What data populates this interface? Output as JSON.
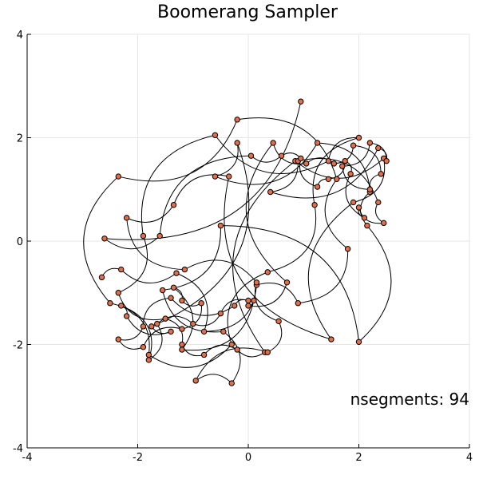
{
  "chart_data": {
    "type": "line",
    "title": "Boomerang Sampler",
    "annotation": "nsegments: 94",
    "xlim": [
      -4,
      4
    ],
    "ylim": [
      -4,
      4
    ],
    "xticks": [
      -4,
      -2,
      0,
      2,
      4
    ],
    "yticks": [
      -4,
      -2,
      0,
      2,
      4
    ],
    "grid": true,
    "colors": {
      "line": "#000000",
      "marker": "#e26f46"
    },
    "points": [
      [
        -2.65,
        -0.7
      ],
      [
        -2.3,
        -0.55
      ],
      [
        -1.3,
        -0.62
      ],
      [
        -0.8,
        -1.75
      ],
      [
        0.15,
        -0.85
      ],
      [
        0.9,
        -1.2
      ],
      [
        1.8,
        -0.15
      ],
      [
        1.6,
        1.2
      ],
      [
        -0.2,
        2.35
      ],
      [
        -2.35,
        1.25
      ],
      [
        -2.5,
        -1.2
      ],
      [
        -1.8,
        -2.2
      ],
      [
        -0.3,
        -2.0
      ],
      [
        0.35,
        -0.6
      ],
      [
        1.2,
        0.7
      ],
      [
        2.0,
        2.0
      ],
      [
        1.45,
        1.55
      ],
      [
        -0.6,
        2.05
      ],
      [
        -1.9,
        0.1
      ],
      [
        -2.35,
        -1.0
      ],
      [
        -1.5,
        -1.5
      ],
      [
        -1.2,
        -2.0
      ],
      [
        -0.8,
        -2.2
      ],
      [
        -0.2,
        -2.1
      ],
      [
        0.3,
        -2.15
      ],
      [
        0.85,
        1.55
      ],
      [
        2.45,
        1.6
      ],
      [
        1.9,
        0.75
      ],
      [
        1.5,
        -1.9
      ],
      [
        -0.35,
        1.25
      ],
      [
        -1.35,
        0.7
      ],
      [
        -2.2,
        0.45
      ],
      [
        -1.15,
        -0.55
      ],
      [
        0.15,
        -0.8
      ],
      [
        0.55,
        -1.55
      ],
      [
        0.35,
        -2.15
      ],
      [
        -0.95,
        -2.7
      ],
      [
        -0.3,
        -2.75
      ],
      [
        -0.45,
        -1.75
      ],
      [
        -1.55,
        -0.95
      ],
      [
        -0.5,
        0.3
      ],
      [
        2.0,
        -1.95
      ],
      [
        2.15,
        0.3
      ],
      [
        2.2,
        0.95
      ],
      [
        1.25,
        1.9
      ],
      [
        -0.6,
        1.25
      ],
      [
        -0.2,
        1.9
      ],
      [
        -1.75,
        -1.65
      ],
      [
        -1.4,
        -1.75
      ],
      [
        -2.2,
        -1.45
      ],
      [
        -2.3,
        -1.25
      ],
      [
        -1.8,
        -2.3
      ],
      [
        -1.65,
        -1.6
      ],
      [
        -1.0,
        -1.6
      ],
      [
        -0.5,
        -1.4
      ],
      [
        0.0,
        -1.15
      ],
      [
        -0.25,
        -1.25
      ],
      [
        -1.4,
        -1.1
      ],
      [
        -1.9,
        -1.65
      ],
      [
        -2.35,
        -1.9
      ],
      [
        -1.9,
        -2.05
      ],
      [
        -1.2,
        -1.7
      ],
      [
        -0.85,
        -1.2
      ],
      [
        -1.2,
        -1.15
      ],
      [
        -1.35,
        -0.9
      ],
      [
        -1.2,
        -2.1
      ],
      [
        0.1,
        -1.15
      ],
      [
        0.0,
        -1.25
      ],
      [
        0.7,
        -0.8
      ],
      [
        0.45,
        1.9
      ],
      [
        1.05,
        1.5
      ],
      [
        1.55,
        1.5
      ],
      [
        1.9,
        1.85
      ],
      [
        2.4,
        1.3
      ],
      [
        2.2,
        1.0
      ],
      [
        1.7,
        1.45
      ],
      [
        2.2,
        1.9
      ],
      [
        2.5,
        1.55
      ],
      [
        2.35,
        1.8
      ],
      [
        0.4,
        0.95
      ],
      [
        0.9,
        1.55
      ],
      [
        2.35,
        0.75
      ],
      [
        2.45,
        0.35
      ],
      [
        2.0,
        0.65
      ],
      [
        2.1,
        0.45
      ],
      [
        1.85,
        1.3
      ],
      [
        1.75,
        1.55
      ],
      [
        1.45,
        1.2
      ],
      [
        1.25,
        1.05
      ],
      [
        0.95,
        1.6
      ],
      [
        0.6,
        1.65
      ],
      [
        0.05,
        1.65
      ],
      [
        -1.6,
        0.1
      ],
      [
        -2.6,
        0.05
      ],
      [
        0.95,
        2.7
      ]
    ]
  }
}
